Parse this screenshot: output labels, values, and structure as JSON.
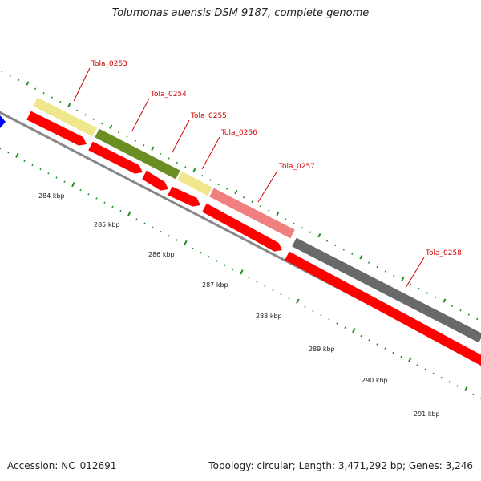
{
  "title": "Tolumonas auensis DSM 9187, complete genome",
  "footer": {
    "accession": "Accession: NC_012691",
    "summary": "Topology: circular; Length: 3,471,292 bp; Genes: 3,246"
  },
  "colors": {
    "cds": "#ff0000",
    "backbone": "#888888",
    "tick": "#228b22",
    "label": "#d40000",
    "upstream_feature": "#0000ff"
  },
  "ticks": [
    {
      "label": "284 kbp"
    },
    {
      "label": "285 kbp"
    },
    {
      "label": "286 kbp"
    },
    {
      "label": "287 kbp"
    },
    {
      "label": "288 kbp"
    },
    {
      "label": "289 kbp"
    },
    {
      "label": "290 kbp"
    },
    {
      "label": "291 kbp"
    }
  ],
  "genes": [
    {
      "label": "Tola_0253",
      "color": "#f0e68c"
    },
    {
      "label": "Tola_0254",
      "color": "#6b8e23"
    },
    {
      "label": "Tola_0255",
      "color": "#f0e68c"
    },
    {
      "label": "Tola_0256",
      "color": "#f08080"
    },
    {
      "label": "Tola_0257",
      "color": "#696969"
    },
    {
      "label": "Tola_0258",
      "color": "#696969"
    }
  ]
}
